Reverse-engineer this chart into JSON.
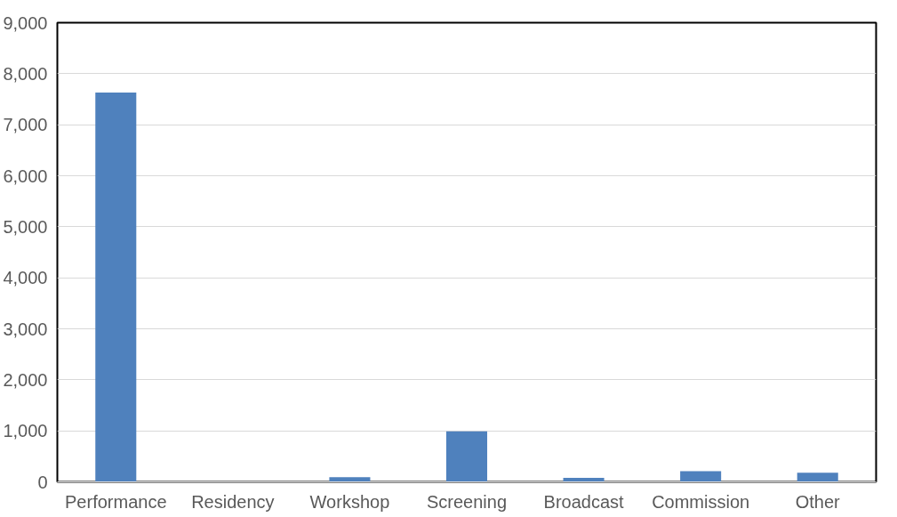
{
  "chart_data": {
    "type": "bar",
    "categories": [
      "Performance",
      "Residency",
      "Workshop",
      "Screening",
      "Broadcast",
      "Commission",
      "Other"
    ],
    "values": [
      7630,
      0,
      90,
      990,
      80,
      210,
      180
    ],
    "color": "#4f81bd",
    "ylim": [
      0,
      9000
    ],
    "yticks": [
      {
        "value": 0,
        "label": "0"
      },
      {
        "value": 1000,
        "label": "1,000"
      },
      {
        "value": 2000,
        "label": "2,000"
      },
      {
        "value": 3000,
        "label": "3,000"
      },
      {
        "value": 4000,
        "label": "4,000"
      },
      {
        "value": 5000,
        "label": "5,000"
      },
      {
        "value": 6000,
        "label": "6,000"
      },
      {
        "value": 7000,
        "label": "7,000"
      },
      {
        "value": 8000,
        "label": "8,000"
      },
      {
        "value": 9000,
        "label": "9,000"
      }
    ],
    "grid": "y"
  }
}
